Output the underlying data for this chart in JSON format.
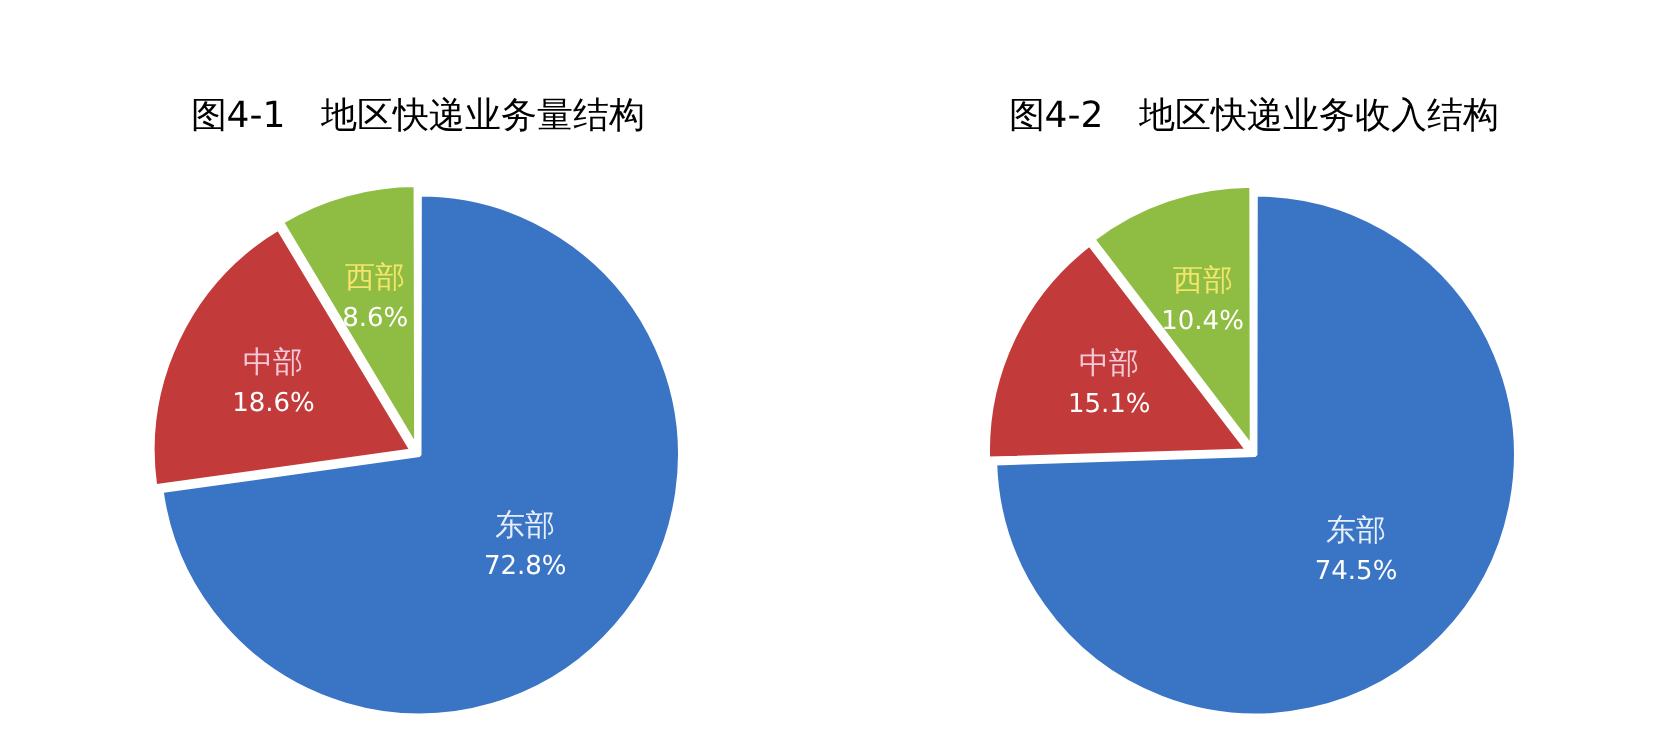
{
  "chart_data": [
    {
      "type": "pie",
      "title": "图4-1　地区快递业务量结构",
      "categories": [
        "东部",
        "中部",
        "西部"
      ],
      "values": [
        72.8,
        18.6,
        8.6
      ],
      "value_labels": [
        "72.8%",
        "18.6%",
        "8.6%"
      ],
      "colors": [
        "#3a74c4",
        "#c23a3a",
        "#8fbd44"
      ],
      "legend": false
    },
    {
      "type": "pie",
      "title": "图4-2　地区快递业务收入结构",
      "categories": [
        "东部",
        "中部",
        "西部"
      ],
      "values": [
        74.5,
        15.1,
        10.4
      ],
      "value_labels": [
        "74.5%",
        "15.1%",
        "10.4%"
      ],
      "colors": [
        "#3a74c4",
        "#c23a3a",
        "#8fbd44"
      ],
      "legend": false
    }
  ]
}
